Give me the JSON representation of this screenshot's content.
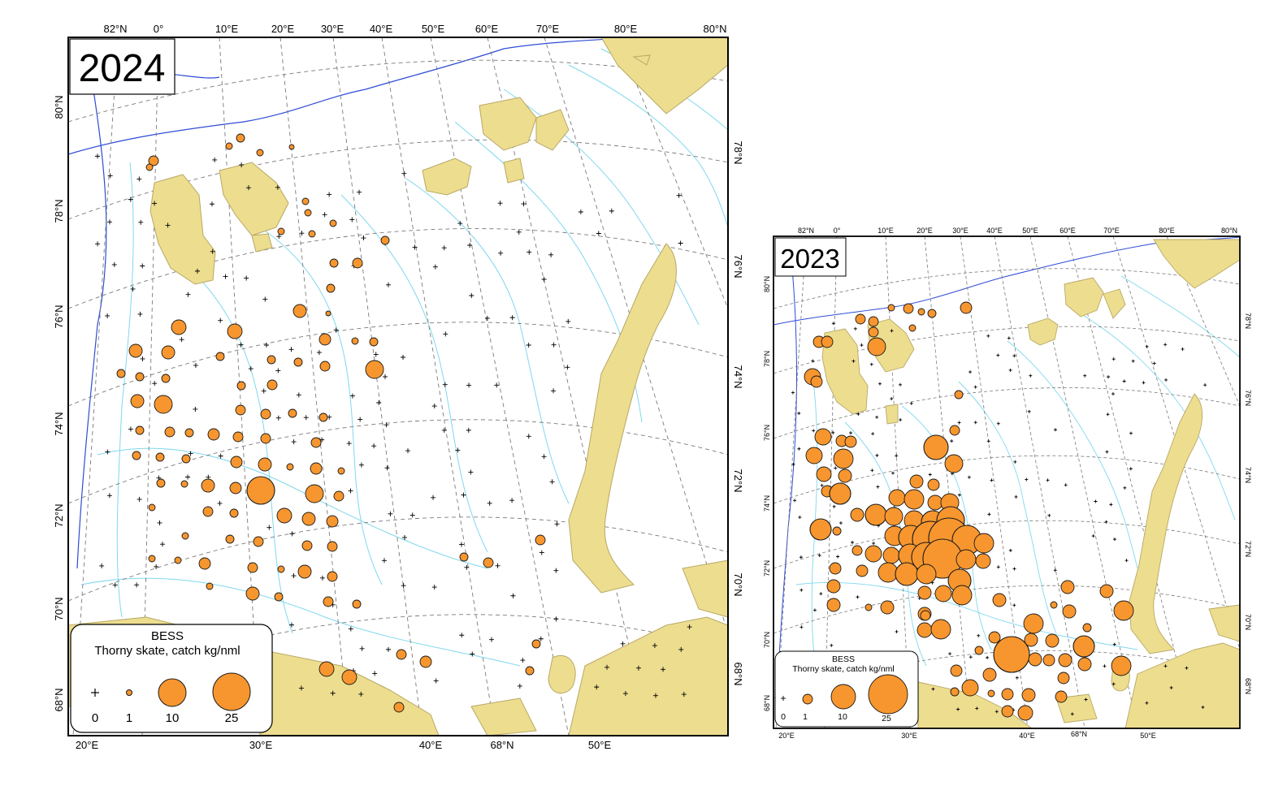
{
  "maps": [
    {
      "id": "map-2024",
      "year": "2024",
      "top_labels": [
        "82°N",
        "0°",
        "10°E",
        "20°E",
        "30°E",
        "40°E",
        "50°E",
        "60°E",
        "70°E",
        "80°E",
        "80°N"
      ],
      "bottom_labels": [
        "20°E",
        "30°E",
        "40°E",
        "68°N",
        "50°E"
      ],
      "left_labels": [
        "80°N",
        "78°N",
        "76°N",
        "74°N",
        "72°N",
        "70°N",
        "68°N"
      ],
      "right_labels": [
        "78°N",
        "76°N",
        "74°N",
        "72°N",
        "70°N",
        "68°N"
      ],
      "legend": {
        "title": "BESS",
        "subtitle": "Thorny skate, catch kg/nml",
        "values": [
          "0",
          "1",
          "10",
          "25"
        ]
      }
    },
    {
      "id": "map-2023",
      "year": "2023",
      "top_labels": [
        "82°N",
        "0°",
        "10°E",
        "20°E",
        "30°E",
        "40°E",
        "50°E",
        "60°E",
        "70°E",
        "80°E",
        "80°N"
      ],
      "bottom_labels": [
        "20°E",
        "30°E",
        "40°E",
        "68°N",
        "50°E"
      ],
      "left_labels": [
        "80°N",
        "78°N",
        "76°N",
        "74°N",
        "72°N",
        "70°N",
        "68°N"
      ],
      "right_labels": [
        "78°N",
        "76°N",
        "74°N",
        "72°N",
        "70°N",
        "68°N"
      ],
      "legend": {
        "title": "BESS",
        "subtitle": "Thorny skate, catch kg/nml",
        "values": [
          "0",
          "1",
          "10",
          "25"
        ]
      }
    }
  ],
  "colors": {
    "land": "#EDDD8F",
    "land_stroke": "#B8A865",
    "marker_fill": "#F7962E",
    "marker_stroke": "#1a1a1a",
    "grid": "#7a7a7a",
    "contour_light": "#7FD8EE",
    "contour_dark": "#2E4BD6"
  },
  "symbols": {
    "zero_catch": "plus-marker",
    "catch": "proportional-circle"
  }
}
